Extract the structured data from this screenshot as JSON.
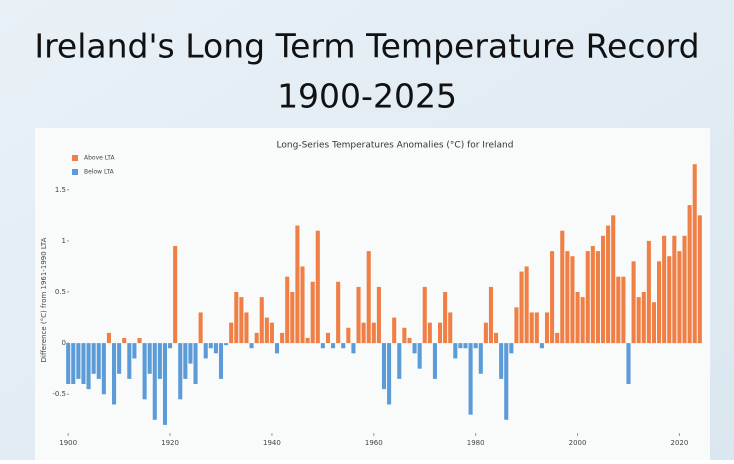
{
  "heading": {
    "title": "Ireland's Long Term Temperature Record",
    "subtitle": "1900-2025"
  },
  "chart_data": {
    "type": "bar",
    "title": "Long-Series Temperatures Anomalies (°C) for Ireland",
    "y_label": "Difference (°C) from 1961-1990 LTA",
    "legend": [
      {
        "name": "Above LTA",
        "color": "#ef7f45"
      },
      {
        "name": "Below LTA",
        "color": "#5a9bd8"
      }
    ],
    "legend_position": "upper left",
    "xlim": [
      1898,
      2026
    ],
    "xticks": [
      1900,
      1920,
      1940,
      1960,
      1980,
      2000,
      2020
    ],
    "ylim": [
      -0.85,
      1.85
    ],
    "yticks": [
      -0.5,
      0,
      0.5,
      1,
      1.5
    ],
    "grid": false,
    "x": [
      1900,
      1901,
      1902,
      1903,
      1904,
      1905,
      1906,
      1907,
      1908,
      1909,
      1910,
      1911,
      1912,
      1913,
      1914,
      1915,
      1916,
      1917,
      1918,
      1919,
      1920,
      1921,
      1922,
      1923,
      1924,
      1925,
      1926,
      1927,
      1928,
      1929,
      1930,
      1931,
      1932,
      1933,
      1934,
      1935,
      1936,
      1937,
      1938,
      1939,
      1940,
      1941,
      1942,
      1943,
      1944,
      1945,
      1946,
      1947,
      1948,
      1949,
      1950,
      1951,
      1952,
      1953,
      1954,
      1955,
      1956,
      1957,
      1958,
      1959,
      1960,
      1961,
      1962,
      1963,
      1964,
      1965,
      1966,
      1967,
      1968,
      1969,
      1970,
      1971,
      1972,
      1973,
      1974,
      1975,
      1976,
      1977,
      1978,
      1979,
      1980,
      1981,
      1982,
      1983,
      1984,
      1985,
      1986,
      1987,
      1988,
      1989,
      1990,
      1991,
      1992,
      1993,
      1994,
      1995,
      1996,
      1997,
      1998,
      1999,
      2000,
      2001,
      2002,
      2003,
      2004,
      2005,
      2006,
      2007,
      2008,
      2009,
      2010,
      2011,
      2012,
      2013,
      2014,
      2015,
      2016,
      2017,
      2018,
      2019,
      2020,
      2021,
      2022,
      2023,
      2024
    ],
    "values": [
      -0.4,
      -0.4,
      -0.35,
      -0.4,
      -0.45,
      -0.3,
      -0.35,
      -0.5,
      0.1,
      -0.6,
      -0.3,
      0.05,
      -0.35,
      -0.15,
      0.05,
      -0.55,
      -0.3,
      -0.75,
      -0.35,
      -0.8,
      -0.05,
      0.95,
      -0.55,
      -0.35,
      -0.2,
      -0.4,
      0.3,
      -0.15,
      -0.05,
      -0.1,
      -0.35,
      -0.02,
      0.2,
      0.5,
      0.45,
      0.3,
      -0.05,
      0.1,
      0.45,
      0.25,
      0.2,
      -0.1,
      0.1,
      0.65,
      0.5,
      1.15,
      0.75,
      0.05,
      0.6,
      1.1,
      -0.05,
      0.1,
      -0.05,
      0.6,
      -0.05,
      0.15,
      -0.1,
      0.55,
      0.2,
      0.9,
      0.2,
      0.55,
      -0.45,
      -0.6,
      0.25,
      -0.35,
      0.15,
      0.05,
      -0.1,
      -0.25,
      0.55,
      0.2,
      -0.35,
      0.2,
      0.5,
      0.3,
      -0.15,
      -0.05,
      -0.05,
      -0.7,
      -0.05,
      -0.3,
      0.2,
      0.55,
      0.1,
      -0.35,
      -0.75,
      -0.1,
      0.35,
      0.7,
      0.75,
      0.3,
      0.3,
      -0.05,
      0.3,
      0.9,
      0.1,
      1.1,
      0.9,
      0.85,
      0.5,
      0.45,
      0.9,
      0.95,
      0.9,
      1.05,
      1.15,
      1.25,
      0.65,
      0.65,
      -0.4,
      0.8,
      0.45,
      0.5,
      1.0,
      0.4,
      0.8,
      1.05,
      0.85,
      1.05,
      0.9,
      1.05,
      1.35,
      1.75,
      1.25
    ]
  }
}
